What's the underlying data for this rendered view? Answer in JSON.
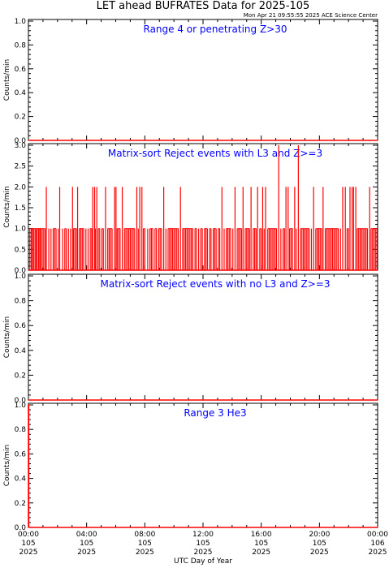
{
  "header": {
    "title": "LET ahead BUFRATES Data for 2025-105",
    "timestamp": "Mon Apr 21 09:55:55 2025 ACE Science Center"
  },
  "xlabel": "UTC Day of Year",
  "x_ticks": [
    {
      "time": "00:00",
      "doy": "105",
      "year": "2025"
    },
    {
      "time": "04:00",
      "doy": "105",
      "year": "2025"
    },
    {
      "time": "08:00",
      "doy": "105",
      "year": "2025"
    },
    {
      "time": "12:00",
      "doy": "105",
      "year": "2025"
    },
    {
      "time": "16:00",
      "doy": "105",
      "year": "2025"
    },
    {
      "time": "20:00",
      "doy": "105",
      "year": "2025"
    },
    {
      "time": "00:00",
      "doy": "106",
      "year": "2025"
    }
  ],
  "colors": {
    "data": "#ff0000",
    "panel_title": "#0000ff",
    "axis": "#000000"
  },
  "chart_data": [
    {
      "type": "line",
      "title": "Range 4 or  penetrating Z>30",
      "ylabel": "Counts/min",
      "xlim": [
        0,
        24
      ],
      "ylim": [
        0,
        1
      ],
      "y_ticks": [
        "0.0",
        "0.2",
        "0.4",
        "0.6",
        "0.8",
        "1.0"
      ],
      "series": [
        {
          "x": [
            0,
            24
          ],
          "values": [
            0,
            0
          ]
        }
      ]
    },
    {
      "type": "line",
      "title": "Matrix-sort Reject events with L3 and Z>=3",
      "ylabel": "Counts/min",
      "xlim": [
        0,
        24
      ],
      "ylim": [
        0,
        3
      ],
      "y_ticks": [
        "0.0",
        "0.5",
        "1.0",
        "1.5",
        "2.0",
        "2.5",
        "3.0"
      ],
      "spikes_2": [
        1.23,
        2.15,
        3.03,
        3.38,
        4.42,
        4.55,
        4.7,
        5.3,
        5.92,
        6.02,
        6.45,
        7.45,
        7.65,
        7.8,
        9.3,
        10.45,
        13.3,
        14.2,
        14.75,
        15.3,
        15.75,
        16.1,
        16.3,
        17.7,
        17.85,
        18.3,
        19.6,
        20.25,
        21.6,
        21.78,
        22.1,
        22.25,
        22.35,
        22.5,
        23.45
      ],
      "spikes_3": [
        17.2,
        18.55
      ],
      "ones_x": [
        0.1,
        0.2,
        0.28,
        0.35,
        0.45,
        0.52,
        0.6,
        0.7,
        0.78,
        0.85,
        0.95,
        1.05,
        1.15,
        1.4,
        1.55,
        1.7,
        1.8,
        1.9,
        2.05,
        2.35,
        2.5,
        2.6,
        2.75,
        2.9,
        3.1,
        3.2,
        3.3,
        3.5,
        3.6,
        3.7,
        3.8,
        3.95,
        4.1,
        4.25,
        4.35,
        4.6,
        4.8,
        4.9,
        5.05,
        5.15,
        5.45,
        5.55,
        5.65,
        5.75,
        6.1,
        6.2,
        6.3,
        6.6,
        6.7,
        6.8,
        6.9,
        7.0,
        7.1,
        7.2,
        7.3,
        7.55,
        7.9,
        8.0,
        8.2,
        8.35,
        8.45,
        8.55,
        8.7,
        8.8,
        8.95,
        9.05,
        9.15,
        9.45,
        9.6,
        9.7,
        9.8,
        9.9,
        10.0,
        10.1,
        10.2,
        10.3,
        10.6,
        10.7,
        10.8,
        10.9,
        11.0,
        11.1,
        11.2,
        11.3,
        11.45,
        11.55,
        11.7,
        11.85,
        11.95,
        12.1,
        12.2,
        12.3,
        12.45,
        12.55,
        12.7,
        12.8,
        12.9,
        13.05,
        13.15,
        13.45,
        13.6,
        13.7,
        13.8,
        13.9,
        14.05,
        14.35,
        14.45,
        14.55,
        14.65,
        14.9,
        15.0,
        15.1,
        15.2,
        15.45,
        15.55,
        15.65,
        15.9,
        16.0,
        16.2,
        16.45,
        16.55,
        16.65,
        16.75,
        16.85,
        16.95,
        17.05,
        17.35,
        17.5,
        17.6,
        17.95,
        18.05,
        18.15,
        18.4,
        18.7,
        18.8,
        18.9,
        19.0,
        19.1,
        19.2,
        19.3,
        19.45,
        19.75,
        19.85,
        19.95,
        20.05,
        20.15,
        20.4,
        20.5,
        20.6,
        20.7,
        20.8,
        20.9,
        21.0,
        21.1,
        21.2,
        21.3,
        21.45,
        21.9,
        22.0,
        22.6,
        22.7,
        22.8,
        22.9,
        23.0,
        23.1,
        23.2,
        23.3,
        23.55,
        23.65,
        23.75,
        23.85,
        23.95
      ]
    },
    {
      "type": "line",
      "title": "Matrix-sort Reject events with no L3 and Z>=3",
      "ylabel": "Counts/min",
      "xlim": [
        0,
        24
      ],
      "ylim": [
        0,
        1
      ],
      "y_ticks": [
        "0.0",
        "0.2",
        "0.4",
        "0.6",
        "0.8",
        "1.0"
      ],
      "series": [
        {
          "x": [
            0,
            24
          ],
          "values": [
            0,
            0
          ]
        }
      ]
    },
    {
      "type": "line",
      "title": "Range 3 He3",
      "ylabel": "Counts/min",
      "xlim": [
        0,
        24
      ],
      "ylim": [
        0,
        1
      ],
      "y_ticks": [
        "0.0",
        "0.2",
        "0.4",
        "0.6",
        "0.8",
        "1.0"
      ],
      "series": [
        {
          "x": [
            0,
            0,
            0.02,
            0.02,
            24
          ],
          "values": [
            0,
            1,
            1,
            0,
            0
          ]
        }
      ]
    }
  ]
}
